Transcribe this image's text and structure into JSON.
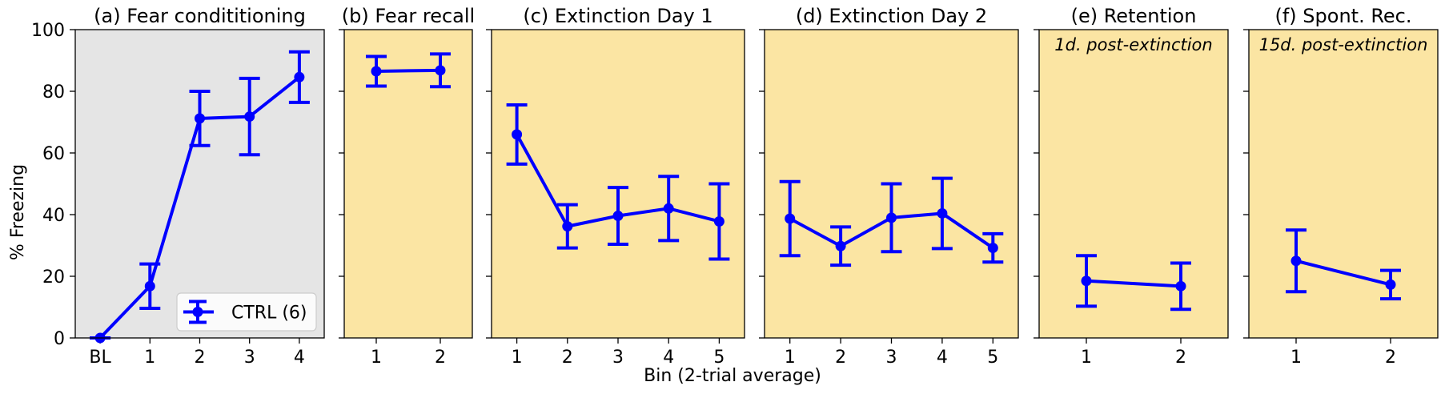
{
  "chart_data": {
    "type": "line",
    "ylabel": "% Freezing",
    "xlabel": "Bin (2-trial average)",
    "ylim": [
      0,
      100
    ],
    "yticks": [
      0,
      20,
      40,
      60,
      80,
      100
    ],
    "grid": false,
    "colors": {
      "series": "#0000ff",
      "panel_gray": "#e5e5e5",
      "panel_yellow": "#fbe5a3"
    },
    "legend": {
      "label": "CTRL (6)",
      "position": "lower-right"
    },
    "panels": [
      {
        "title": "(a) Fear condititioning",
        "categories": [
          "BL",
          "1",
          "2",
          "3",
          "4"
        ],
        "values": [
          0,
          16.8,
          71.2,
          71.8,
          84.6
        ],
        "errors": [
          0,
          7.2,
          8.8,
          12.4,
          8.2
        ],
        "background": "gray",
        "annotation": ""
      },
      {
        "title": "(b) Fear recall",
        "categories": [
          "1",
          "2"
        ],
        "values": [
          86.5,
          86.8
        ],
        "errors": [
          4.8,
          5.3
        ],
        "background": "yellow",
        "annotation": ""
      },
      {
        "title": "(c) Extinction Day 1",
        "categories": [
          "1",
          "2",
          "3",
          "4",
          "5"
        ],
        "values": [
          66.0,
          36.2,
          39.6,
          42.0,
          37.8
        ],
        "errors": [
          9.6,
          7.0,
          9.2,
          10.4,
          12.2
        ],
        "background": "yellow",
        "annotation": ""
      },
      {
        "title": "(d) Extinction Day 2",
        "categories": [
          "1",
          "2",
          "3",
          "4",
          "5"
        ],
        "values": [
          38.7,
          29.8,
          39.0,
          40.4,
          29.2
        ],
        "errors": [
          12.0,
          6.2,
          11.0,
          11.4,
          4.6
        ],
        "background": "yellow",
        "annotation": ""
      },
      {
        "title": "(e) Retention",
        "categories": [
          "1",
          "2"
        ],
        "values": [
          18.5,
          16.8
        ],
        "errors": [
          8.2,
          7.5
        ],
        "background": "yellow",
        "annotation": "1d. post-extinction"
      },
      {
        "title": "(f) Spont. Rec.",
        "categories": [
          "1",
          "2"
        ],
        "values": [
          25.0,
          17.3
        ],
        "errors": [
          10.0,
          4.6
        ],
        "background": "yellow",
        "annotation": "15d. post-extinction"
      }
    ]
  }
}
